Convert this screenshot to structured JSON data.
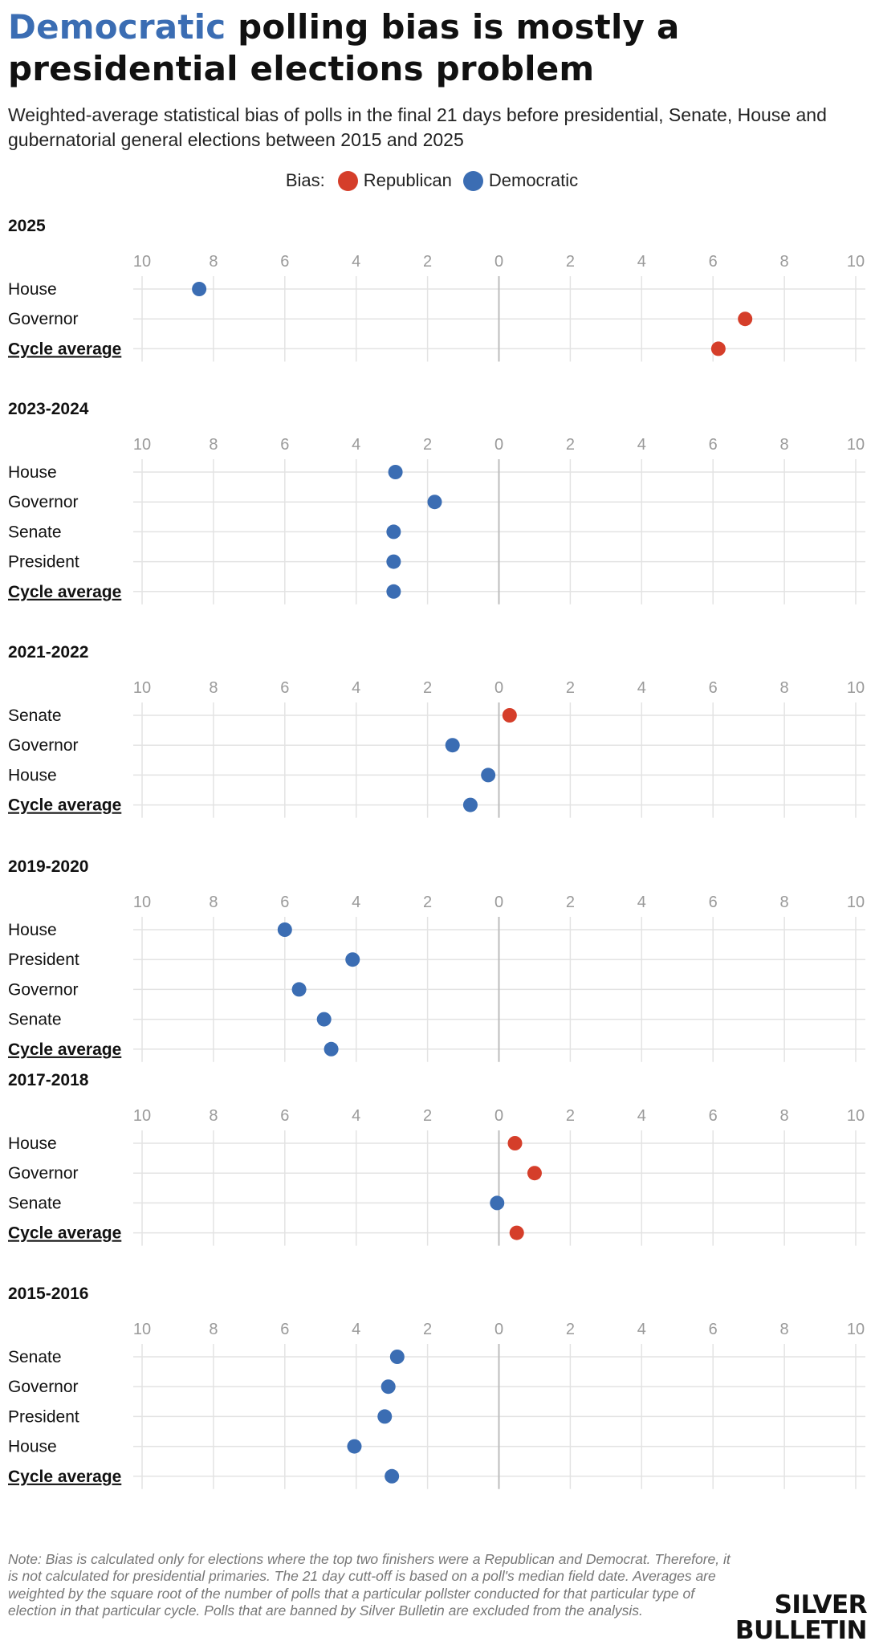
{
  "header": {
    "title_highlight": "Democratic",
    "title_rest": " polling bias is mostly a presidential elections problem",
    "subtitle": "Weighted-average statistical bias of polls in the final 21 days before presidential, Senate, House and gubernatorial general elections between 2015 and 2025"
  },
  "legend": {
    "label": "Bias:",
    "republican": "Republican",
    "democratic": "Democratic"
  },
  "colors": {
    "republican": "#d53e2a",
    "democratic": "#3b6db3",
    "grid": "#e3e3e3",
    "zero_line": "#bdbdbd",
    "tick_text": "#9a9a9a"
  },
  "chart_data": {
    "type": "scatter",
    "title": "Democratic polling bias is mostly a presidential elections problem",
    "xlabel": "Bias",
    "xlim": [
      -10,
      10
    ],
    "ticks": [
      "10",
      "8",
      "6",
      "4",
      "2",
      "0",
      "2",
      "4",
      "6",
      "8",
      "10"
    ],
    "note_sign": "negative = Democratic bias (left), positive = Republican bias (right)",
    "panels": [
      {
        "cycle": "2025",
        "rows": [
          {
            "label": "House",
            "value": -8.4,
            "party": "democratic",
            "average": false
          },
          {
            "label": "Governor",
            "value": 6.9,
            "party": "republican",
            "average": false
          },
          {
            "label": "Cycle average",
            "value": 6.15,
            "party": "republican",
            "average": true
          }
        ]
      },
      {
        "cycle": "2023-2024",
        "rows": [
          {
            "label": "House",
            "value": -2.9,
            "party": "democratic",
            "average": false
          },
          {
            "label": "Governor",
            "value": -1.8,
            "party": "democratic",
            "average": false
          },
          {
            "label": "Senate",
            "value": -2.95,
            "party": "democratic",
            "average": false
          },
          {
            "label": "President",
            "value": -2.95,
            "party": "democratic",
            "average": false
          },
          {
            "label": "Cycle average",
            "value": -2.95,
            "party": "democratic",
            "average": true
          }
        ]
      },
      {
        "cycle": "2021-2022",
        "rows": [
          {
            "label": "Senate",
            "value": 0.3,
            "party": "republican",
            "average": false
          },
          {
            "label": "Governor",
            "value": -1.3,
            "party": "democratic",
            "average": false
          },
          {
            "label": "House",
            "value": -0.3,
            "party": "democratic",
            "average": false
          },
          {
            "label": "Cycle average",
            "value": -0.8,
            "party": "democratic",
            "average": true
          }
        ]
      },
      {
        "cycle": "2019-2020",
        "rows": [
          {
            "label": "House",
            "value": -6.0,
            "party": "democratic",
            "average": false
          },
          {
            "label": "President",
            "value": -4.1,
            "party": "democratic",
            "average": false
          },
          {
            "label": "Governor",
            "value": -5.6,
            "party": "democratic",
            "average": false
          },
          {
            "label": "Senate",
            "value": -4.9,
            "party": "democratic",
            "average": false
          },
          {
            "label": "Cycle average",
            "value": -4.7,
            "party": "democratic",
            "average": true
          }
        ]
      },
      {
        "cycle": "2017-2018",
        "rows": [
          {
            "label": "House",
            "value": 0.45,
            "party": "republican",
            "average": false
          },
          {
            "label": "Governor",
            "value": 1.0,
            "party": "republican",
            "average": false
          },
          {
            "label": "Senate",
            "value": -0.05,
            "party": "democratic",
            "average": false
          },
          {
            "label": "Cycle average",
            "value": 0.5,
            "party": "republican",
            "average": true
          }
        ]
      },
      {
        "cycle": "2015-2016",
        "rows": [
          {
            "label": "Senate",
            "value": -2.85,
            "party": "democratic",
            "average": false
          },
          {
            "label": "Governor",
            "value": -3.1,
            "party": "democratic",
            "average": false
          },
          {
            "label": "President",
            "value": -3.2,
            "party": "democratic",
            "average": false
          },
          {
            "label": "House",
            "value": -4.05,
            "party": "democratic",
            "average": false
          },
          {
            "label": "Cycle average",
            "value": -3.0,
            "party": "democratic",
            "average": true
          }
        ]
      }
    ]
  },
  "footer": {
    "note": "Note: Bias is calculated only for elections where the top two finishers were a Republican and Democrat. Therefore, it is not calculated for presidential primaries. The 21 day cutt-off is based on a poll's median field date. Averages are weighted by the square root of the number of polls that a particular pollster conducted for that particular type of election in that particular cycle. Polls that are banned by Silver Bulletin are excluded from the analysis.",
    "logo_line1": "SILVER",
    "logo_line2": "BULLETIN"
  }
}
